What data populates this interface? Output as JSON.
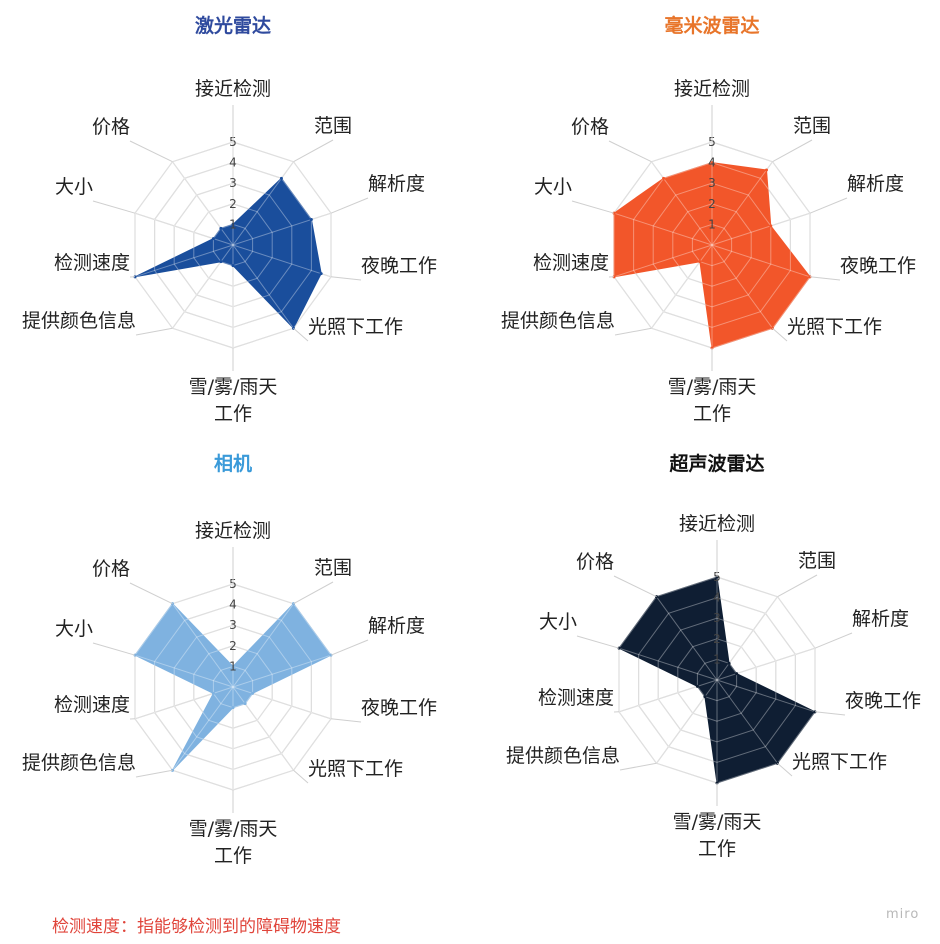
{
  "chart_data": [
    {
      "type": "radar",
      "title": "激光雷达",
      "title_color": "#2f4a9e",
      "fill_color": "#1a4e9c",
      "tick_color": "#ffffff",
      "axes": [
        "接近检测",
        "范围",
        "解析度",
        "夜晚工作",
        "光照下工作",
        "雪/雾/雨天工作",
        "提供颜色信息",
        "检测速度",
        "大小",
        "价格"
      ],
      "ticks": [
        "1",
        "2",
        "3",
        "4",
        "5"
      ],
      "rlim": [
        0,
        5
      ],
      "values": [
        1,
        4,
        4,
        4.5,
        5,
        1,
        1,
        5,
        1,
        1
      ]
    },
    {
      "type": "radar",
      "title": "毫米波雷达",
      "title_color": "#e8752a",
      "fill_color": "#f2562a",
      "tick_color": "#ffffff",
      "axes": [
        "接近检测",
        "范围",
        "解析度",
        "夜晚工作",
        "光照下工作",
        "雪/雾/雨天工作",
        "提供颜色信息",
        "检测速度",
        "大小",
        "价格"
      ],
      "ticks": [
        "1",
        "2",
        "3",
        "4",
        "5"
      ],
      "rlim": [
        0,
        5
      ],
      "values": [
        4,
        4.5,
        3,
        5,
        5,
        5,
        1,
        5,
        5,
        4
      ]
    },
    {
      "type": "radar",
      "title": "相机",
      "title_color": "#3a9ad9",
      "fill_color": "#7fb2e0",
      "tick_color": "#ffffff",
      "axes": [
        "接近检测",
        "范围",
        "解析度",
        "夜晚工作",
        "光照下工作",
        "雪/雾/雨天工作",
        "提供颜色信息",
        "检测速度",
        "大小",
        "价格"
      ],
      "ticks": [
        "1",
        "2",
        "3",
        "4",
        "5"
      ],
      "rlim": [
        0,
        5
      ],
      "values": [
        1,
        5,
        5,
        1,
        1,
        1,
        5,
        1,
        5,
        5
      ]
    },
    {
      "type": "radar",
      "title": "超声波雷达",
      "title_color": "#111111",
      "fill_color": "#0f1e33",
      "tick_color": "#e03030",
      "axes": [
        "接近检测",
        "范围",
        "解析度",
        "夜晚工作",
        "光照下工作",
        "雪/雾/雨天工作",
        "提供颜色信息",
        "检测速度",
        "大小",
        "价格"
      ],
      "ticks": [
        "1",
        "2",
        "3",
        "4",
        "5"
      ],
      "rlim": [
        0,
        5
      ],
      "values": [
        5,
        1,
        1,
        5,
        5,
        5,
        1,
        1,
        5,
        5
      ]
    }
  ],
  "footnote": "检测速度：指能够检测到的障碍物速度",
  "watermark": "miro"
}
